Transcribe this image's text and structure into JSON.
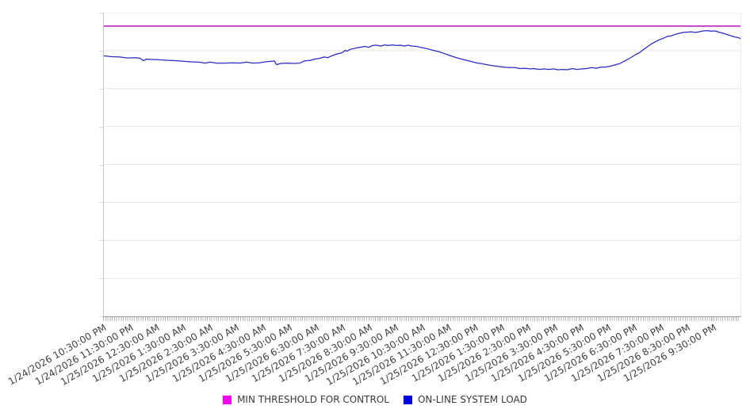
{
  "chart_data": {
    "type": "line",
    "title": "",
    "xlabel": "",
    "ylabel": "",
    "legend_position": "bottom",
    "grid": "horizontal",
    "ylim": [
      0,
      100
    ],
    "y_gridline_divisions": 8,
    "y_axis_labels_visible": false,
    "x_minor_tick_count": 288,
    "x_tick_labels": [
      "1/24/2026 10:30:00 PM",
      "1/24/2026 11:30:00 PM",
      "1/25/2026 12:30:00 AM",
      "1/25/2026 1:30:00 AM",
      "1/25/2026 2:30:00 AM",
      "1/25/2026 3:30:00 AM",
      "1/25/2026 4:30:00 AM",
      "1/25/2026 5:30:00 AM",
      "1/25/2026 6:30:00 AM",
      "1/25/2026 7:30:00 AM",
      "1/25/2026 8:30:00 AM",
      "1/25/2026 9:30:00 AM",
      "1/25/2026 10:30:00 AM",
      "1/25/2026 11:30:00 AM",
      "1/25/2026 12:30:00 PM",
      "1/25/2026 1:30:00 PM",
      "1/25/2026 2:30:00 PM",
      "1/25/2026 3:30:00 PM",
      "1/25/2026 4:30:00 PM",
      "1/25/2026 5:30:00 PM",
      "1/25/2026 6:30:00 PM",
      "1/25/2026 7:30:00 PM",
      "1/25/2026 8:30:00 PM",
      "1/25/2026 9:30:00 PM"
    ],
    "colors": {
      "gridline": "#e6e6e6",
      "axis_x": "#9b9b9b",
      "axis_y": "#c6c6c6",
      "tick": "#b3b3b3",
      "label_text": "#404040"
    },
    "series": [
      {
        "name": "MIN THRESHOLD FOR CONTROL",
        "type": "threshold",
        "color": "#c233c2",
        "legend_color": "#fb00fb",
        "value": 95.6
      },
      {
        "name": "ON-LINE SYSTEM LOAD",
        "type": "line",
        "color": "#2828c8",
        "legend_color": "#0000dd",
        "points": [
          [
            0.0,
            85.8
          ],
          [
            0.012,
            85.5
          ],
          [
            0.025,
            85.4
          ],
          [
            0.037,
            85.1
          ],
          [
            0.05,
            85.2
          ],
          [
            0.057,
            85.0
          ],
          [
            0.062,
            84.2
          ],
          [
            0.067,
            84.7
          ],
          [
            0.075,
            84.6
          ],
          [
            0.087,
            84.5
          ],
          [
            0.1,
            84.3
          ],
          [
            0.112,
            84.2
          ],
          [
            0.125,
            84.0
          ],
          [
            0.137,
            83.8
          ],
          [
            0.149,
            83.7
          ],
          [
            0.159,
            83.4
          ],
          [
            0.167,
            83.7
          ],
          [
            0.177,
            83.4
          ],
          [
            0.189,
            83.4
          ],
          [
            0.202,
            83.5
          ],
          [
            0.214,
            83.4
          ],
          [
            0.224,
            83.7
          ],
          [
            0.234,
            83.4
          ],
          [
            0.244,
            83.5
          ],
          [
            0.254,
            83.8
          ],
          [
            0.263,
            84.0
          ],
          [
            0.268,
            84.1
          ],
          [
            0.271,
            82.9
          ],
          [
            0.278,
            83.3
          ],
          [
            0.288,
            83.4
          ],
          [
            0.298,
            83.3
          ],
          [
            0.308,
            83.4
          ],
          [
            0.315,
            84.1
          ],
          [
            0.324,
            84.3
          ],
          [
            0.331,
            84.7
          ],
          [
            0.339,
            85.0
          ],
          [
            0.346,
            85.4
          ],
          [
            0.352,
            85.2
          ],
          [
            0.359,
            85.9
          ],
          [
            0.366,
            86.4
          ],
          [
            0.374,
            86.8
          ],
          [
            0.379,
            87.6
          ],
          [
            0.382,
            87.3
          ],
          [
            0.387,
            87.9
          ],
          [
            0.395,
            88.3
          ],
          [
            0.402,
            88.6
          ],
          [
            0.41,
            88.9
          ],
          [
            0.416,
            88.6
          ],
          [
            0.422,
            89.2
          ],
          [
            0.428,
            89.3
          ],
          [
            0.435,
            89.0
          ],
          [
            0.441,
            89.4
          ],
          [
            0.447,
            89.2
          ],
          [
            0.453,
            89.4
          ],
          [
            0.46,
            89.2
          ],
          [
            0.466,
            89.3
          ],
          [
            0.472,
            89.0
          ],
          [
            0.478,
            89.3
          ],
          [
            0.484,
            89.0
          ],
          [
            0.491,
            88.9
          ],
          [
            0.497,
            88.6
          ],
          [
            0.504,
            88.3
          ],
          [
            0.512,
            87.9
          ],
          [
            0.519,
            87.5
          ],
          [
            0.527,
            87.1
          ],
          [
            0.534,
            86.6
          ],
          [
            0.542,
            86.0
          ],
          [
            0.549,
            85.5
          ],
          [
            0.557,
            85.0
          ],
          [
            0.564,
            84.6
          ],
          [
            0.572,
            84.2
          ],
          [
            0.579,
            83.8
          ],
          [
            0.587,
            83.4
          ],
          [
            0.594,
            83.2
          ],
          [
            0.601,
            82.9
          ],
          [
            0.609,
            82.6
          ],
          [
            0.616,
            82.4
          ],
          [
            0.624,
            82.2
          ],
          [
            0.631,
            82.0
          ],
          [
            0.639,
            81.9
          ],
          [
            0.646,
            81.9
          ],
          [
            0.654,
            81.6
          ],
          [
            0.661,
            81.7
          ],
          [
            0.669,
            81.5
          ],
          [
            0.676,
            81.6
          ],
          [
            0.684,
            81.3
          ],
          [
            0.691,
            81.5
          ],
          [
            0.699,
            81.3
          ],
          [
            0.706,
            81.5
          ],
          [
            0.713,
            81.2
          ],
          [
            0.721,
            81.3
          ],
          [
            0.728,
            81.2
          ],
          [
            0.736,
            81.6
          ],
          [
            0.743,
            81.3
          ],
          [
            0.751,
            81.5
          ],
          [
            0.758,
            81.6
          ],
          [
            0.766,
            81.9
          ],
          [
            0.773,
            81.7
          ],
          [
            0.781,
            82.1
          ],
          [
            0.788,
            82.1
          ],
          [
            0.796,
            82.4
          ],
          [
            0.803,
            82.8
          ],
          [
            0.811,
            83.3
          ],
          [
            0.818,
            84.1
          ],
          [
            0.826,
            85.0
          ],
          [
            0.833,
            85.9
          ],
          [
            0.841,
            86.8
          ],
          [
            0.848,
            87.9
          ],
          [
            0.854,
            88.8
          ],
          [
            0.86,
            89.7
          ],
          [
            0.867,
            90.5
          ],
          [
            0.873,
            91.1
          ],
          [
            0.879,
            91.6
          ],
          [
            0.885,
            92.2
          ],
          [
            0.892,
            92.4
          ],
          [
            0.898,
            92.9
          ],
          [
            0.904,
            93.2
          ],
          [
            0.91,
            93.5
          ],
          [
            0.917,
            93.6
          ],
          [
            0.923,
            93.7
          ],
          [
            0.929,
            93.5
          ],
          [
            0.935,
            93.7
          ],
          [
            0.941,
            94.0
          ],
          [
            0.948,
            94.1
          ],
          [
            0.954,
            93.9
          ],
          [
            0.96,
            94.0
          ],
          [
            0.966,
            93.6
          ],
          [
            0.973,
            93.2
          ],
          [
            0.979,
            92.8
          ],
          [
            0.985,
            92.4
          ],
          [
            0.991,
            92.0
          ],
          [
            0.996,
            91.8
          ],
          [
            1.0,
            91.5
          ]
        ]
      }
    ]
  }
}
